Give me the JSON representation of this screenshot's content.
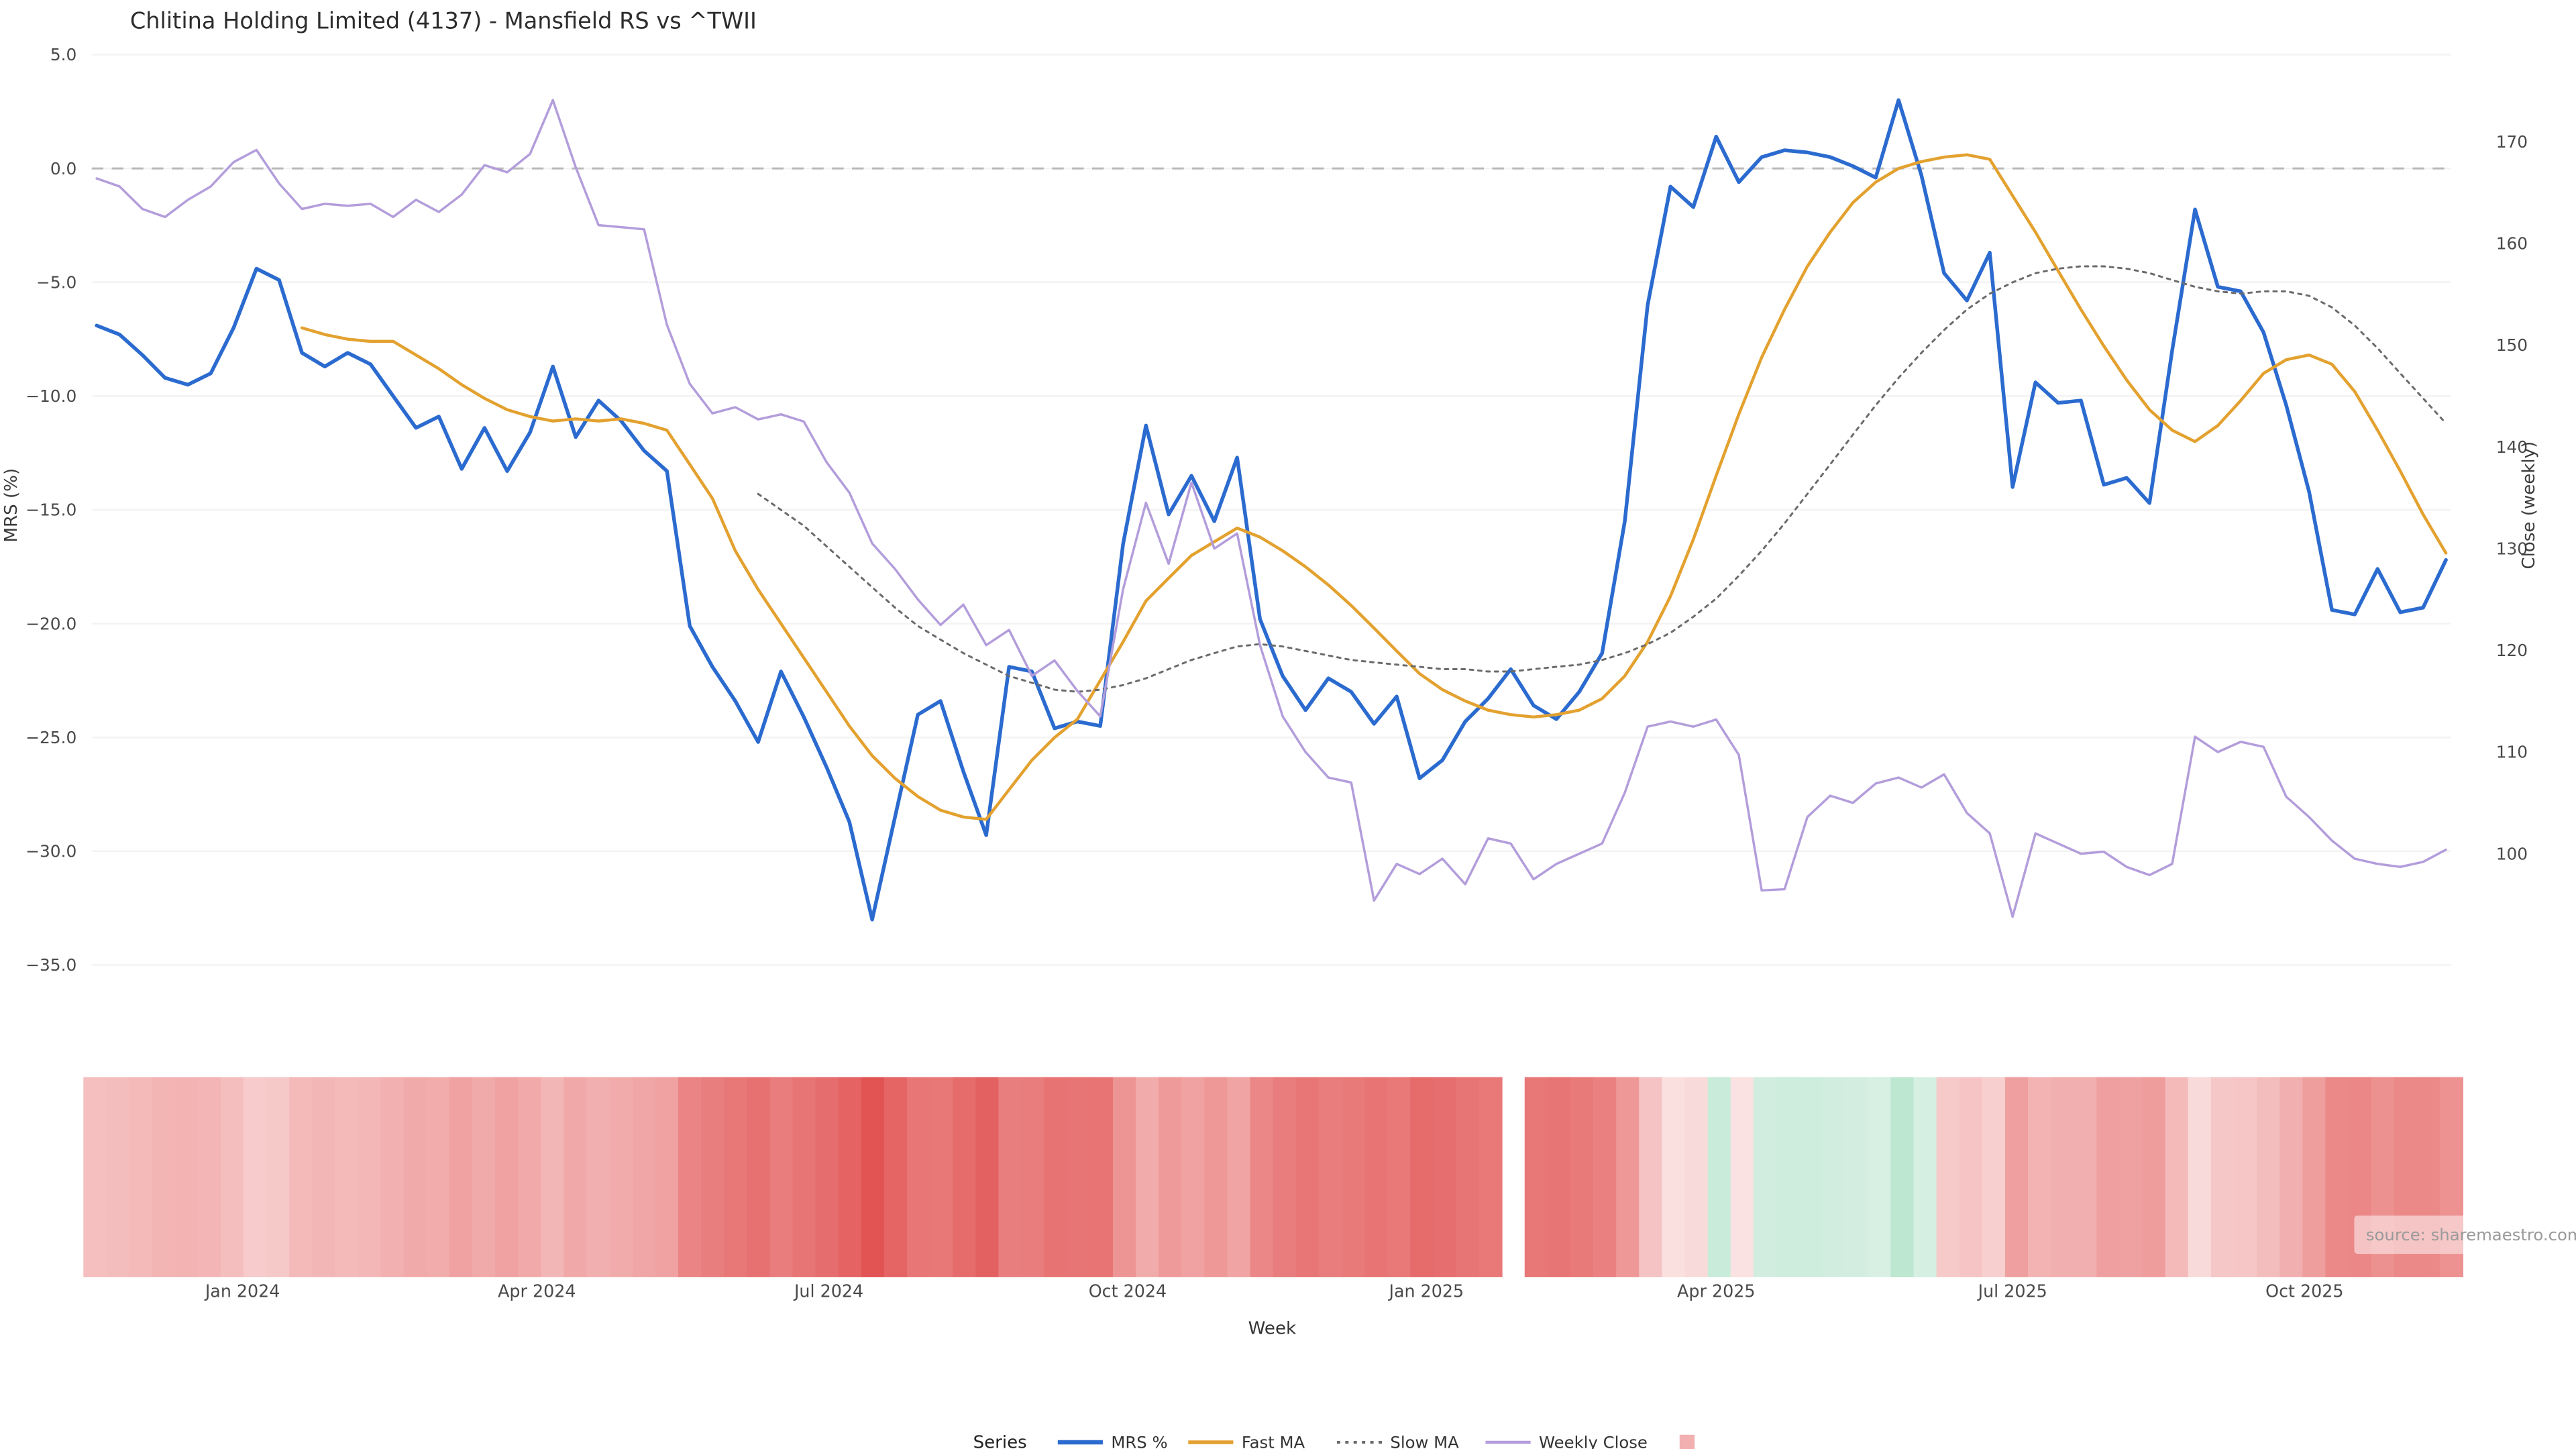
{
  "title": "Chlitina Holding Limited (4137) - Mansfield RS vs ^TWII",
  "source_note": "source: sharemaestro.com",
  "chart_data": {
    "type": "line",
    "x_label": "Week",
    "x_unit": "week_index",
    "weeks": 104,
    "y_left": {
      "label": "MRS (%)",
      "ticks": [
        5.0,
        0.0,
        -5.0,
        -10.0,
        -15.0,
        -20.0,
        -25.0,
        -30.0,
        -35.0
      ],
      "tick_labels": [
        "5.0",
        "0.0",
        "−5.0",
        "−10.0",
        "−15.0",
        "−20.0",
        "−25.0",
        "−30.0",
        "−35.0"
      ],
      "range": [
        -37,
        6.5
      ]
    },
    "y_right": {
      "label": "Close (weekly)",
      "ticks": [
        170,
        160,
        150,
        140,
        130,
        120,
        110,
        100
      ],
      "tick_labels": [
        "170",
        "160",
        "150",
        "140",
        "130",
        "120",
        "110",
        "100"
      ],
      "range": [
        92,
        176
      ]
    },
    "x_ticks": [
      {
        "label": "Jan 2024",
        "week": 6.4
      },
      {
        "label": "Apr 2024",
        "week": 19.3
      },
      {
        "label": "Jul 2024",
        "week": 32.1
      },
      {
        "label": "Oct 2024",
        "week": 45.2
      },
      {
        "label": "Jan 2025",
        "week": 58.3
      },
      {
        "label": "Apr 2025",
        "week": 71.0
      },
      {
        "label": "Jul 2025",
        "week": 84.0
      },
      {
        "label": "Oct 2025",
        "week": 96.8
      }
    ],
    "zero_line": 0.0,
    "legend": {
      "title": "Series",
      "swatch_color": "#f2b0b0"
    },
    "series": [
      {
        "name": "MRS %",
        "axis": "left",
        "color": "#2b6bcf",
        "style": "solid",
        "width": 2.2,
        "start_week": 0,
        "values": [
          -6.9,
          -7.3,
          -8.2,
          -9.2,
          -9.5,
          -9.0,
          -7.0,
          -4.4,
          -4.9,
          -8.1,
          -8.7,
          -8.1,
          -8.6,
          -10.0,
          -11.4,
          -10.9,
          -13.2,
          -11.4,
          -13.3,
          -11.6,
          -8.7,
          -11.8,
          -10.2,
          -11.1,
          -12.4,
          -13.3,
          -20.1,
          -21.9,
          -23.4,
          -25.2,
          -22.1,
          -24.1,
          -26.3,
          -28.7,
          -33.0,
          -28.5,
          -24.0,
          -23.4,
          -26.5,
          -29.3,
          -21.9,
          -22.1,
          -24.6,
          -24.3,
          -24.5,
          -16.5,
          -11.3,
          -15.2,
          -13.5,
          -15.5,
          -12.7,
          -19.8,
          -22.3,
          -23.8,
          -22.4,
          -23.0,
          -24.4,
          -23.2,
          -26.8,
          -26.0,
          -24.3,
          -23.3,
          -22.0,
          -23.6,
          -24.2,
          -23.0,
          -21.3,
          -15.5,
          -6.0,
          -0.8,
          -1.7,
          1.4,
          -0.6,
          0.5,
          0.8,
          0.7,
          0.5,
          0.1,
          -0.4,
          3.0,
          -0.3,
          -4.6,
          -5.8,
          -3.7,
          -14.0,
          -9.4,
          -10.3,
          -10.2,
          -13.9,
          -13.6,
          -14.7,
          -8.0,
          -1.8,
          -5.2,
          -5.4,
          -7.2,
          -10.4,
          -14.2,
          -19.4,
          -19.6,
          -17.6,
          -19.5,
          -19.3,
          -17.2
        ]
      },
      {
        "name": "Fast MA",
        "axis": "left",
        "color": "#e3a12f",
        "style": "solid",
        "width": 1.8,
        "start_week": 9,
        "values": [
          -7.0,
          -7.3,
          -7.5,
          -7.6,
          -7.6,
          -8.2,
          -8.8,
          -9.5,
          -10.1,
          -10.6,
          -10.9,
          -11.1,
          -11.0,
          -11.1,
          -11.0,
          -11.2,
          -11.5,
          -13.0,
          -14.5,
          -16.8,
          -18.5,
          -20.0,
          -21.5,
          -23.0,
          -24.5,
          -25.8,
          -26.8,
          -27.6,
          -28.2,
          -28.5,
          -28.6,
          -27.3,
          -26.0,
          -25.0,
          -24.2,
          -22.5,
          -20.8,
          -19.0,
          -18.0,
          -17.0,
          -16.4,
          -15.8,
          -16.2,
          -16.8,
          -17.5,
          -18.3,
          -19.2,
          -20.2,
          -21.2,
          -22.2,
          -22.9,
          -23.4,
          -23.8,
          -24.0,
          -24.1,
          -24.0,
          -23.8,
          -23.3,
          -22.3,
          -20.8,
          -18.8,
          -16.3,
          -13.5,
          -10.8,
          -8.3,
          -6.2,
          -4.3,
          -2.8,
          -1.5,
          -0.6,
          0.0,
          0.3,
          0.5,
          0.6,
          0.4,
          -1.2,
          -2.8,
          -4.5,
          -6.2,
          -7.8,
          -9.3,
          -10.6,
          -11.5,
          -12.0,
          -11.3,
          -10.2,
          -9.0,
          -8.4,
          -8.2,
          -8.6,
          -9.8,
          -11.5,
          -13.3,
          -15.2,
          -16.9
        ]
      },
      {
        "name": "Slow MA",
        "axis": "left",
        "color": "#6b6b6b",
        "style": "dotted",
        "width": 1.2,
        "start_week": 29,
        "values": [
          -14.3,
          -15.0,
          -15.7,
          -16.6,
          -17.5,
          -18.4,
          -19.3,
          -20.1,
          -20.7,
          -21.3,
          -21.8,
          -22.3,
          -22.6,
          -22.9,
          -23.0,
          -22.9,
          -22.7,
          -22.4,
          -22.0,
          -21.6,
          -21.3,
          -21.0,
          -20.9,
          -21.0,
          -21.2,
          -21.4,
          -21.6,
          -21.7,
          -21.8,
          -21.9,
          -22.0,
          -22.0,
          -22.1,
          -22.1,
          -22.0,
          -21.9,
          -21.8,
          -21.6,
          -21.3,
          -20.9,
          -20.4,
          -19.7,
          -18.9,
          -17.9,
          -16.8,
          -15.6,
          -14.3,
          -13.0,
          -11.7,
          -10.4,
          -9.2,
          -8.1,
          -7.1,
          -6.2,
          -5.5,
          -5.0,
          -4.6,
          -4.4,
          -4.3,
          -4.3,
          -4.4,
          -4.6,
          -4.9,
          -5.2,
          -5.4,
          -5.5,
          -5.4,
          -5.4,
          -5.6,
          -6.1,
          -6.9,
          -7.9,
          -9.0,
          -10.1,
          -11.2
        ]
      },
      {
        "name": "Weekly Close",
        "axis": "right",
        "color": "#b39ddb",
        "style": "solid",
        "width": 1.4,
        "start_week": 0,
        "values": [
          166.4,
          165.6,
          163.4,
          162.6,
          164.3,
          165.6,
          168.0,
          169.2,
          165.9,
          163.4,
          163.9,
          163.7,
          163.9,
          162.6,
          164.3,
          163.1,
          164.8,
          167.7,
          167.0,
          168.8,
          174.1,
          167.5,
          161.8,
          161.6,
          161.4,
          152.0,
          146.2,
          143.3,
          143.9,
          142.7,
          143.2,
          142.5,
          138.5,
          135.5,
          130.5,
          128.0,
          125.0,
          122.5,
          124.5,
          120.5,
          122.0,
          117.5,
          119.0,
          116.0,
          113.5,
          126.0,
          134.5,
          128.5,
          136.5,
          130.0,
          131.5,
          120.5,
          113.5,
          110.0,
          107.5,
          107.0,
          95.4,
          99.0,
          98.0,
          99.5,
          97.0,
          101.5,
          101.0,
          97.5,
          99.0,
          100.0,
          101.0,
          106.0,
          112.5,
          113.0,
          112.5,
          113.2,
          109.7,
          96.4,
          96.5,
          103.6,
          105.7,
          105.0,
          106.9,
          107.5,
          106.5,
          107.8,
          104.0,
          102.0,
          93.8,
          102.0,
          101.0,
          100.0,
          100.2,
          98.7,
          97.9,
          99.0,
          111.5,
          110.0,
          111.0,
          110.5,
          105.6,
          103.6,
          101.3,
          99.5,
          99.0,
          98.7,
          99.2,
          100.4
        ]
      }
    ],
    "heatmap": {
      "based_on": "MRS %",
      "gap_weeks": [
        62
      ],
      "colors": {
        "negative_low": "#fbe3e3",
        "negative_high": "#e25353",
        "positive_low": "#d8f0e4",
        "positive_high": "#bde7d1"
      }
    }
  }
}
